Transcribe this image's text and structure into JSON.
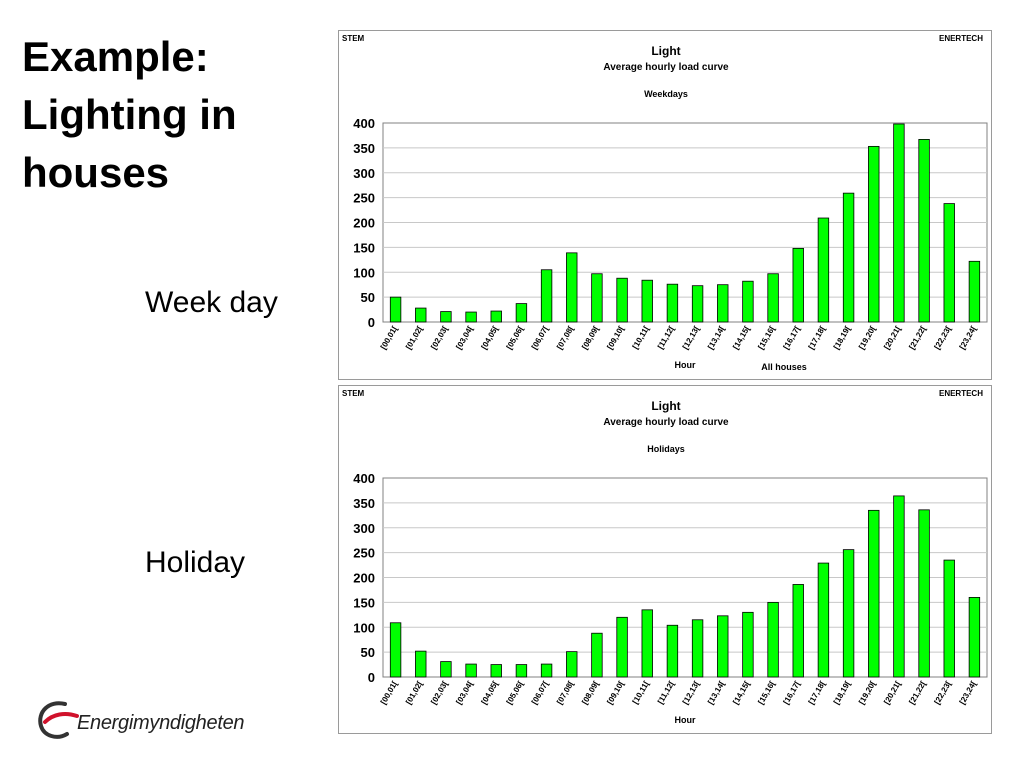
{
  "slide": {
    "title_lines": [
      "Example:",
      "Lighting in",
      "houses"
    ],
    "week_day_label": "Week day",
    "holiday_label": "Holiday",
    "logo_text": "Energimyndigheten"
  },
  "colors": {
    "bar_fill": "#00ff00",
    "bar_stroke": "#000000",
    "grid": "#c8c8c8"
  },
  "chart_data": [
    {
      "type": "bar",
      "corner_left": "STEM",
      "corner_right": "ENERTECH",
      "title": "Light",
      "subtitle": "Average hourly load curve",
      "period": "Weekdays",
      "xlabel": "Hour",
      "footnote": "All houses",
      "ylabel": "",
      "ylim": [
        0,
        400
      ],
      "yticks": [
        0,
        50,
        100,
        150,
        200,
        250,
        300,
        350,
        400
      ],
      "grid": true,
      "categories": [
        "[00,01[",
        "[01,02[",
        "[02,03[",
        "[03,04[",
        "[04,05[",
        "[05,06[",
        "[06,07[",
        "[07,08[",
        "[08,09[",
        "[09,10[",
        "[10,11[",
        "[11,12[",
        "[12,13[",
        "[13,14[",
        "[14,15[",
        "[15,16[",
        "[16,17[",
        "[17,18[",
        "[18,19[",
        "[19,20[",
        "[20,21[",
        "[21,22[",
        "[22,23[",
        "[23,24["
      ],
      "values": [
        50,
        28,
        21,
        20,
        22,
        37,
        105,
        139,
        97,
        88,
        84,
        76,
        73,
        75,
        82,
        97,
        148,
        209,
        259,
        353,
        398,
        367,
        238,
        122
      ]
    },
    {
      "type": "bar",
      "corner_left": "STEM",
      "corner_right": "ENERTECH",
      "title": "Light",
      "subtitle": "Average hourly load curve",
      "period": "Holidays",
      "xlabel": "Hour",
      "footnote": "",
      "ylabel": "",
      "ylim": [
        0,
        400
      ],
      "yticks": [
        0,
        50,
        100,
        150,
        200,
        250,
        300,
        350,
        400
      ],
      "grid": true,
      "categories": [
        "[00,01[",
        "[01,02[",
        "[02,03[",
        "[03,04[",
        "[04,05[",
        "[05,06[",
        "[06,07[",
        "[07,08[",
        "[08,09[",
        "[09,10[",
        "[10,11[",
        "[11,12[",
        "[12,13[",
        "[13,14[",
        "[14,15[",
        "[15,16[",
        "[16,17[",
        "[17,18[",
        "[18,19[",
        "[19,20[",
        "[20,21[",
        "[21,22[",
        "[22,23[",
        "[23,24["
      ],
      "values": [
        109,
        52,
        31,
        26,
        25,
        25,
        26,
        51,
        88,
        120,
        135,
        104,
        115,
        123,
        130,
        150,
        186,
        229,
        256,
        335,
        364,
        336,
        235,
        160
      ]
    }
  ]
}
